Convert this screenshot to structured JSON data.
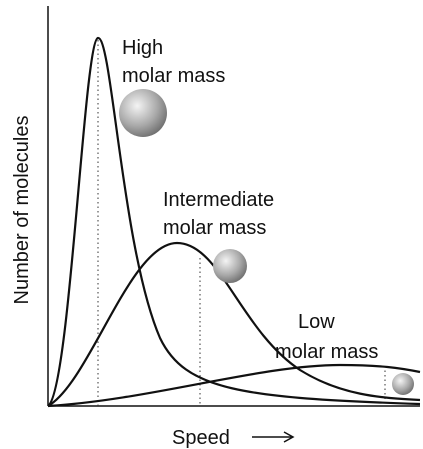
{
  "y_axis_label": "Number of molecules",
  "x_axis_label": "Speed",
  "curves": [
    {
      "label_lines": [
        "High",
        "molar mass"
      ]
    },
    {
      "label_lines": [
        "Intermediate",
        "molar mass"
      ]
    },
    {
      "label_lines": [
        "Low",
        "molar mass"
      ]
    }
  ]
}
